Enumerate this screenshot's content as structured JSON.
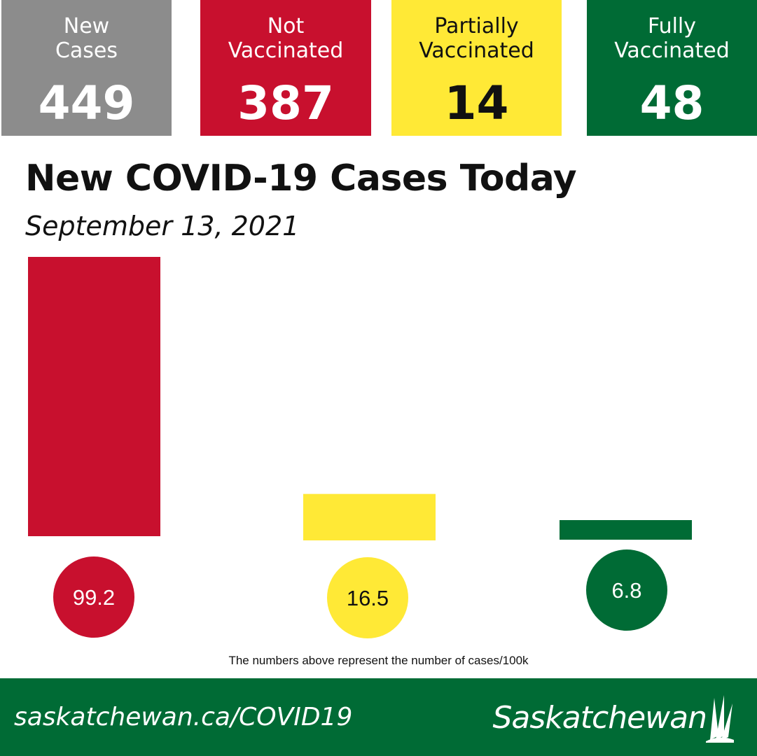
{
  "tiles": [
    {
      "line1": "New",
      "line2": "Cases",
      "value": "449",
      "bg": "#8c8c8c",
      "fg": "#ffffff"
    },
    {
      "line1": "Not",
      "line2": "Vaccinated",
      "value": "387",
      "bg": "#c8102e",
      "fg": "#ffffff"
    },
    {
      "line1": "Partially",
      "line2": "Vaccinated",
      "value": "14",
      "bg": "#ffe936",
      "fg": "#111111"
    },
    {
      "line1": "Fully",
      "line2": "Vaccinated",
      "value": "48",
      "bg": "#006b35",
      "fg": "#ffffff"
    }
  ],
  "heading": {
    "title": "New COVID-19 Cases Today",
    "date": "September 13, 2021"
  },
  "chart_data": {
    "type": "bar",
    "title": "",
    "xlabel": "",
    "ylabel": "",
    "unit": "cases/100k",
    "categories": [
      "Not Vaccinated",
      "Partially Vaccinated",
      "Fully Vaccinated"
    ],
    "values": [
      99.2,
      16.5,
      6.8
    ],
    "labels": [
      "99.2",
      "16.5",
      "6.8"
    ],
    "colors": [
      "#c8102e",
      "#ffe936",
      "#006b35"
    ],
    "label_text_colors": [
      "#ffffff",
      "#111111",
      "#ffffff"
    ],
    "grid": false,
    "legend": "none"
  },
  "note": "The numbers above represent the number of cases/100k",
  "footer": {
    "url": "saskatchewan.ca/COVID19",
    "brand": "Saskatchewan",
    "logo_icon": "wheat-sheaf-icon",
    "bg": "#006b35"
  }
}
